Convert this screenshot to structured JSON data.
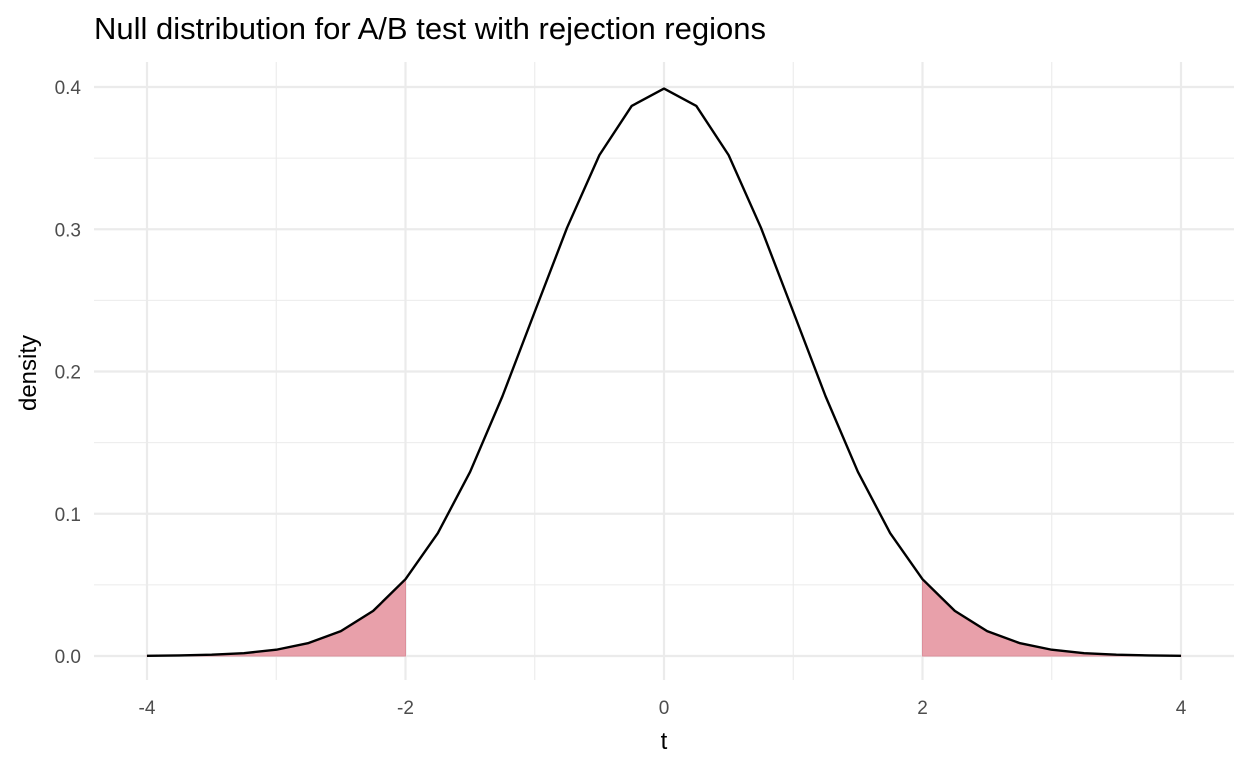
{
  "chart_data": {
    "type": "area",
    "title": "Null distribution for A/B test with rejection regions",
    "xlabel": "t",
    "ylabel": "density",
    "xlim": [
      -4,
      4
    ],
    "ylim": [
      0,
      0.4
    ],
    "x_ticks": [
      -4,
      -2,
      0,
      2,
      4
    ],
    "x_tick_labels": [
      "-4",
      "-2",
      "0",
      "2",
      "4"
    ],
    "y_ticks": [
      0.0,
      0.1,
      0.2,
      0.3,
      0.4
    ],
    "y_tick_labels": [
      "0.0",
      "0.1",
      "0.2",
      "0.3",
      "0.4"
    ],
    "grid": true,
    "legend": "none",
    "series": [
      {
        "x": [
          -4.0,
          -3.75,
          -3.5,
          -3.25,
          -3.0,
          -2.75,
          -2.5,
          -2.25,
          -2.0,
          -1.75,
          -1.5,
          -1.25,
          -1.0,
          -0.75,
          -0.5,
          -0.25,
          0.0,
          0.25,
          0.5,
          0.75,
          1.0,
          1.25,
          1.5,
          1.75,
          2.0,
          2.25,
          2.5,
          2.75,
          3.0,
          3.25,
          3.5,
          3.75,
          4.0
        ],
        "y": [
          0.0001,
          0.0004,
          0.0009,
          0.002,
          0.0044,
          0.0091,
          0.0175,
          0.0317,
          0.054,
          0.0863,
          0.1295,
          0.1826,
          0.242,
          0.3011,
          0.3521,
          0.3867,
          0.3989,
          0.3867,
          0.3521,
          0.3011,
          0.242,
          0.1826,
          0.1295,
          0.0863,
          0.054,
          0.0317,
          0.0175,
          0.0091,
          0.0044,
          0.002,
          0.0009,
          0.0004,
          0.0001
        ]
      }
    ],
    "rejection_regions": [
      {
        "from": -4,
        "to": -2
      },
      {
        "from": 2,
        "to": 4
      }
    ],
    "colors": {
      "curve": "#000000",
      "rejection_fill": "#e8a0aa",
      "rejection_edge": "#dc8f9b",
      "grid": "#ebebeb"
    }
  }
}
